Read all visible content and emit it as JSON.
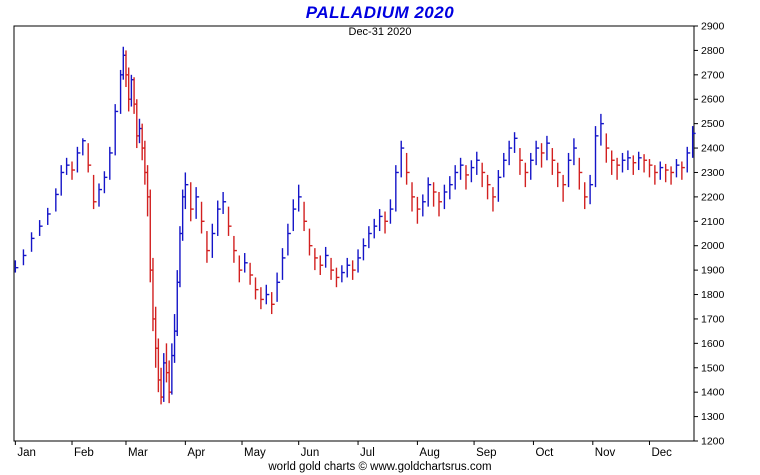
{
  "header": {
    "title": "PALLADIUM 2020",
    "subtitle": "Dec-31  2020"
  },
  "footer": {
    "text": "world gold charts © www.goldchartsrus.com"
  },
  "chart_data": {
    "type": "ohlc",
    "title": "PALLADIUM 2020",
    "subtitle": "Dec-31 2020",
    "ylabel": "",
    "xlabel": "",
    "ylim": [
      1200,
      2900
    ],
    "y_ticks": [
      1200,
      1300,
      1400,
      1500,
      1600,
      1700,
      1800,
      1900,
      2000,
      2100,
      2200,
      2300,
      2400,
      2500,
      2600,
      2700,
      2800,
      2900
    ],
    "x_tick_labels": [
      "Jan",
      "Feb",
      "Mar",
      "Apr",
      "May",
      "Jun",
      "Jul",
      "Aug",
      "Sep",
      "Oct",
      "Nov",
      "Dec"
    ],
    "x_tick_days": [
      0,
      21,
      41,
      63,
      84,
      105,
      127,
      149,
      170,
      192,
      214,
      235
    ],
    "total_days": 252,
    "grid": false,
    "legend_position": "none",
    "up_color": "#1414c8",
    "down_color": "#d22020",
    "axis_color": "#000000",
    "bars_format": [
      "day_index",
      "high",
      "low",
      "close"
    ],
    "bars": [
      [
        0,
        1940,
        1890,
        1910
      ],
      [
        3,
        1985,
        1920,
        1960
      ],
      [
        6,
        2055,
        1975,
        2030
      ],
      [
        9,
        2105,
        2040,
        2080
      ],
      [
        12,
        2155,
        2085,
        2130
      ],
      [
        15,
        2235,
        2140,
        2210
      ],
      [
        17,
        2330,
        2205,
        2300
      ],
      [
        19,
        2360,
        2290,
        2330
      ],
      [
        21,
        2345,
        2270,
        2310
      ],
      [
        23,
        2405,
        2300,
        2380
      ],
      [
        25,
        2440,
        2370,
        2430
      ],
      [
        27,
        2420,
        2300,
        2330
      ],
      [
        29,
        2290,
        2150,
        2180
      ],
      [
        31,
        2255,
        2160,
        2230
      ],
      [
        33,
        2305,
        2215,
        2280
      ],
      [
        35,
        2405,
        2270,
        2380
      ],
      [
        37,
        2580,
        2370,
        2550
      ],
      [
        39,
        2720,
        2540,
        2700
      ],
      [
        40,
        2815,
        2680,
        2780
      ],
      [
        41,
        2800,
        2650,
        2700
      ],
      [
        42,
        2730,
        2550,
        2600
      ],
      [
        43,
        2700,
        2570,
        2680
      ],
      [
        44,
        2690,
        2540,
        2580
      ],
      [
        45,
        2600,
        2400,
        2450
      ],
      [
        46,
        2520,
        2420,
        2480
      ],
      [
        47,
        2500,
        2350,
        2400
      ],
      [
        48,
        2430,
        2250,
        2300
      ],
      [
        49,
        2330,
        2120,
        2200
      ],
      [
        50,
        2230,
        1850,
        1900
      ],
      [
        51,
        1950,
        1650,
        1700
      ],
      [
        52,
        1750,
        1500,
        1580
      ],
      [
        53,
        1620,
        1400,
        1450
      ],
      [
        54,
        1500,
        1350,
        1380
      ],
      [
        55,
        1560,
        1360,
        1520
      ],
      [
        56,
        1600,
        1440,
        1480
      ],
      [
        57,
        1530,
        1355,
        1400
      ],
      [
        58,
        1600,
        1390,
        1550
      ],
      [
        59,
        1720,
        1520,
        1650
      ],
      [
        60,
        1900,
        1630,
        1850
      ],
      [
        61,
        2080,
        1830,
        2050
      ],
      [
        62,
        2230,
        2020,
        2200
      ],
      [
        63,
        2300,
        2150,
        2250
      ],
      [
        65,
        2260,
        2100,
        2150
      ],
      [
        67,
        2240,
        2110,
        2200
      ],
      [
        69,
        2180,
        2050,
        2100
      ],
      [
        71,
        2060,
        1930,
        1980
      ],
      [
        73,
        2090,
        1950,
        2050
      ],
      [
        75,
        2185,
        2040,
        2150
      ],
      [
        77,
        2220,
        2130,
        2180
      ],
      [
        79,
        2160,
        2040,
        2080
      ],
      [
        81,
        2040,
        1930,
        1980
      ],
      [
        83,
        1960,
        1850,
        1900
      ],
      [
        85,
        1970,
        1890,
        1930
      ],
      [
        87,
        1930,
        1840,
        1880
      ],
      [
        89,
        1870,
        1780,
        1820
      ],
      [
        91,
        1830,
        1740,
        1780
      ],
      [
        93,
        1840,
        1760,
        1800
      ],
      [
        95,
        1810,
        1720,
        1760
      ],
      [
        97,
        1890,
        1770,
        1850
      ],
      [
        99,
        1990,
        1860,
        1950
      ],
      [
        101,
        2090,
        1960,
        2050
      ],
      [
        103,
        2190,
        2060,
        2150
      ],
      [
        105,
        2250,
        2140,
        2200
      ],
      [
        107,
        2180,
        2060,
        2100
      ],
      [
        109,
        2070,
        1960,
        2000
      ],
      [
        111,
        1990,
        1900,
        1950
      ],
      [
        113,
        1960,
        1880,
        1920
      ],
      [
        115,
        1995,
        1910,
        1960
      ],
      [
        117,
        1950,
        1860,
        1900
      ],
      [
        119,
        1910,
        1830,
        1870
      ],
      [
        121,
        1920,
        1850,
        1890
      ],
      [
        123,
        1950,
        1870,
        1920
      ],
      [
        125,
        1940,
        1860,
        1900
      ],
      [
        127,
        1985,
        1890,
        1950
      ],
      [
        129,
        2030,
        1940,
        2000
      ],
      [
        131,
        2080,
        1990,
        2050
      ],
      [
        133,
        2110,
        2030,
        2080
      ],
      [
        135,
        2150,
        2060,
        2120
      ],
      [
        137,
        2140,
        2050,
        2100
      ],
      [
        139,
        2190,
        2090,
        2150
      ],
      [
        141,
        2330,
        2140,
        2300
      ],
      [
        143,
        2430,
        2280,
        2400
      ],
      [
        145,
        2380,
        2250,
        2300
      ],
      [
        147,
        2260,
        2140,
        2200
      ],
      [
        149,
        2200,
        2090,
        2150
      ],
      [
        151,
        2210,
        2120,
        2180
      ],
      [
        153,
        2280,
        2160,
        2250
      ],
      [
        155,
        2260,
        2160,
        2220
      ],
      [
        157,
        2220,
        2120,
        2180
      ],
      [
        159,
        2250,
        2150,
        2220
      ],
      [
        161,
        2285,
        2190,
        2250
      ],
      [
        163,
        2330,
        2230,
        2300
      ],
      [
        165,
        2360,
        2270,
        2330
      ],
      [
        167,
        2330,
        2230,
        2290
      ],
      [
        169,
        2350,
        2260,
        2320
      ],
      [
        171,
        2385,
        2290,
        2350
      ],
      [
        173,
        2340,
        2240,
        2300
      ],
      [
        175,
        2290,
        2190,
        2250
      ],
      [
        177,
        2240,
        2140,
        2200
      ],
      [
        179,
        2310,
        2180,
        2280
      ],
      [
        181,
        2380,
        2280,
        2350
      ],
      [
        183,
        2430,
        2330,
        2400
      ],
      [
        185,
        2465,
        2380,
        2440
      ],
      [
        187,
        2400,
        2290,
        2350
      ],
      [
        189,
        2340,
        2240,
        2300
      ],
      [
        191,
        2380,
        2270,
        2350
      ],
      [
        193,
        2430,
        2330,
        2400
      ],
      [
        195,
        2420,
        2320,
        2380
      ],
      [
        197,
        2450,
        2350,
        2420
      ],
      [
        199,
        2400,
        2290,
        2350
      ],
      [
        201,
        2340,
        2240,
        2300
      ],
      [
        203,
        2290,
        2180,
        2250
      ],
      [
        205,
        2380,
        2240,
        2350
      ],
      [
        207,
        2440,
        2330,
        2400
      ],
      [
        209,
        2360,
        2230,
        2300
      ],
      [
        211,
        2260,
        2150,
        2200
      ],
      [
        213,
        2290,
        2170,
        2250
      ],
      [
        215,
        2490,
        2240,
        2450
      ],
      [
        217,
        2540,
        2410,
        2500
      ],
      [
        219,
        2460,
        2340,
        2400
      ],
      [
        221,
        2390,
        2290,
        2350
      ],
      [
        223,
        2360,
        2270,
        2330
      ],
      [
        225,
        2380,
        2300,
        2350
      ],
      [
        227,
        2390,
        2310,
        2360
      ],
      [
        229,
        2370,
        2290,
        2340
      ],
      [
        231,
        2385,
        2310,
        2360
      ],
      [
        233,
        2375,
        2300,
        2350
      ],
      [
        235,
        2355,
        2280,
        2330
      ],
      [
        237,
        2330,
        2250,
        2300
      ],
      [
        239,
        2345,
        2270,
        2320
      ],
      [
        241,
        2335,
        2260,
        2310
      ],
      [
        243,
        2325,
        2250,
        2300
      ],
      [
        245,
        2355,
        2280,
        2330
      ],
      [
        247,
        2345,
        2270,
        2320
      ],
      [
        249,
        2405,
        2300,
        2380
      ],
      [
        251,
        2490,
        2360,
        2460
      ]
    ]
  }
}
